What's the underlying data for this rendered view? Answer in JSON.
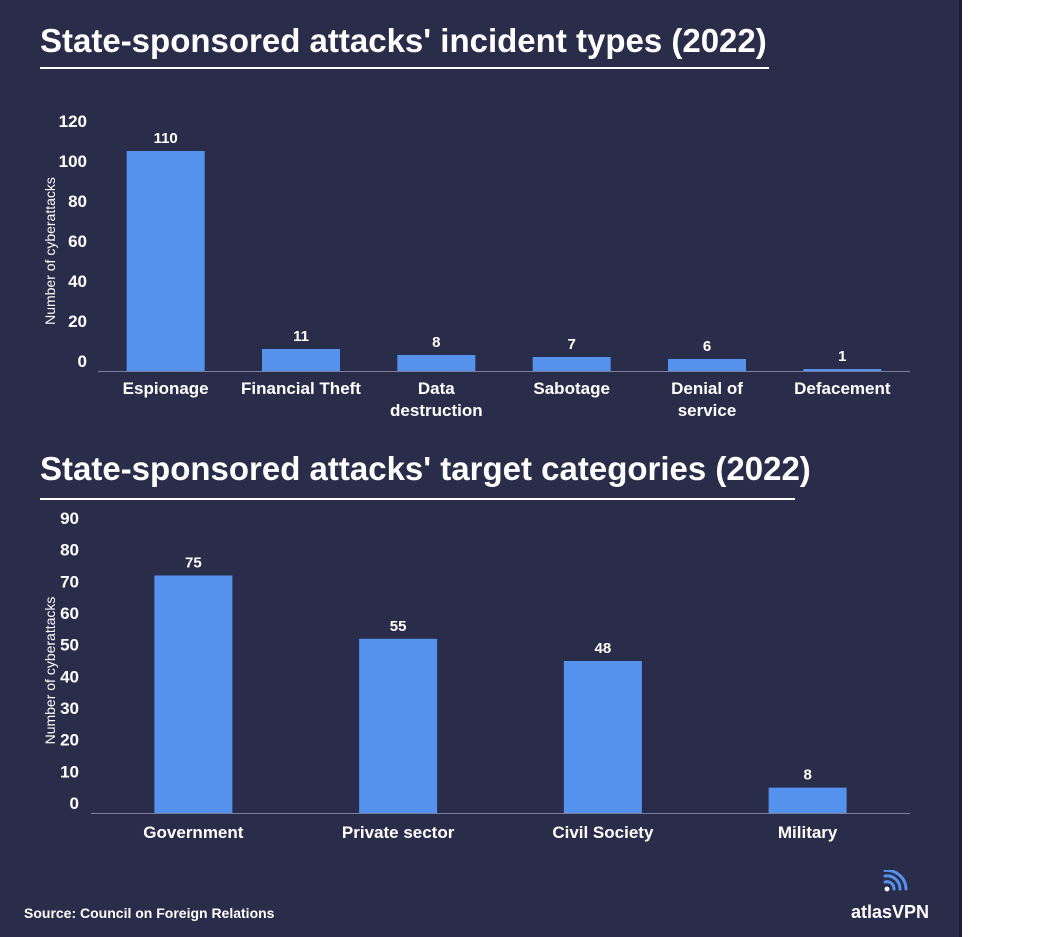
{
  "chart_data": [
    {
      "type": "bar",
      "title": "State-sponsored attacks' incident types (2022)",
      "ylabel": "Number of cyberattacks",
      "xlabel": "",
      "ylim": [
        0,
        120
      ],
      "yticks": [
        0,
        20,
        40,
        60,
        80,
        100,
        120
      ],
      "categories": [
        [
          "Espionage"
        ],
        [
          "Financial Theft"
        ],
        [
          "Data",
          "destruction"
        ],
        [
          "Sabotage"
        ],
        [
          "Denial of",
          "service"
        ],
        [
          "Defacement"
        ]
      ],
      "values": [
        110,
        11,
        8,
        7,
        6,
        1
      ],
      "color": "#5592ed"
    },
    {
      "type": "bar",
      "title": "State-sponsored attacks' target categories (2022)",
      "ylabel": "Number of cyberattacks",
      "xlabel": "",
      "ylim": [
        0,
        90
      ],
      "yticks": [
        0,
        10,
        20,
        30,
        40,
        50,
        60,
        70,
        80,
        90
      ],
      "categories": [
        [
          "Government"
        ],
        [
          "Private sector"
        ],
        [
          "Civil Society"
        ],
        [
          "Military"
        ]
      ],
      "values": [
        75,
        55,
        48,
        8
      ],
      "color": "#5592ed"
    }
  ],
  "footer": {
    "source": "Source: Council on Foreign Relations",
    "brand": "atlasVPN"
  },
  "colors": {
    "background": "#2a2d4a",
    "bar": "#5592ed",
    "text": "#ffffff"
  }
}
